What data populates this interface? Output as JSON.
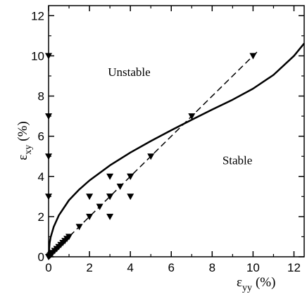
{
  "chart_data": {
    "type": "scatter",
    "title": "",
    "xlabel": {
      "symbol": "ε",
      "subscript": "yy",
      "unit": "(%)"
    },
    "ylabel": {
      "symbol": "ε",
      "subscript": "xy",
      "unit": "(%)"
    },
    "xlim": [
      0,
      12.5
    ],
    "ylim": [
      0,
      12.5
    ],
    "x_ticks": [
      0,
      2,
      4,
      6,
      8,
      10,
      12
    ],
    "y_ticks": [
      0,
      2,
      4,
      6,
      8,
      10,
      12
    ],
    "grid": false,
    "legend": "none",
    "annotations": [
      {
        "text": "Unstable",
        "x": 2.9,
        "y": 9.0
      },
      {
        "text": "Stable",
        "x": 8.5,
        "y": 4.6
      }
    ],
    "boundary_curve": {
      "style": "solid",
      "x": [
        0,
        0.05,
        0.1,
        0.25,
        0.5,
        1,
        1.5,
        2,
        3,
        4,
        5,
        6,
        7,
        8,
        9,
        10,
        11,
        12,
        12.5
      ],
      "y": [
        0,
        0.69,
        0.97,
        1.49,
        2.06,
        2.82,
        3.35,
        3.8,
        4.55,
        5.19,
        5.76,
        6.3,
        6.82,
        7.33,
        7.82,
        8.37,
        9.05,
        10.0,
        10.62
      ]
    },
    "dashed_line": {
      "style": "dashed",
      "x": [
        0,
        10.2
      ],
      "y": [
        0,
        10.2
      ]
    },
    "series": [
      {
        "marker": "triangle-down",
        "x": [
          0,
          0,
          0,
          0,
          0,
          2,
          3,
          3,
          3,
          4,
          4,
          0.05,
          0.1,
          0.15,
          0.2,
          0.3,
          0.4,
          0.5,
          0.6,
          0.7,
          0.8,
          0.9,
          1.0,
          1.5,
          2.0,
          2.5,
          3.0,
          3.5,
          4.0,
          5.0,
          7.0,
          10.0
        ],
        "y": [
          10,
          7,
          5,
          3,
          0,
          3,
          4,
          3,
          2,
          4,
          3,
          0.05,
          0.1,
          0.15,
          0.2,
          0.3,
          0.4,
          0.5,
          0.6,
          0.7,
          0.8,
          0.9,
          1.0,
          1.5,
          2.0,
          2.5,
          3.0,
          3.5,
          4.0,
          5.0,
          7.0,
          10.0
        ]
      }
    ]
  }
}
